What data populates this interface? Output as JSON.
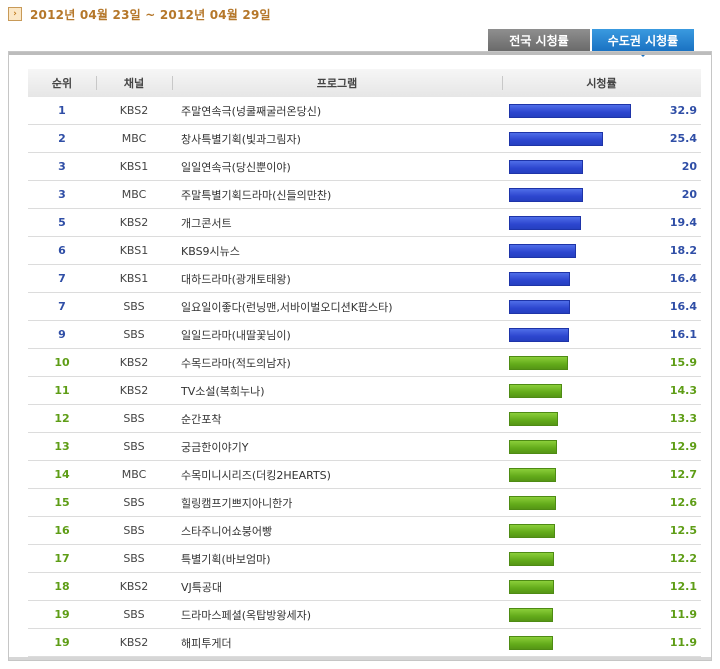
{
  "header": {
    "icon": "arrow-right-icon",
    "date_range": "2012년 04월 23일 ~ 2012년 04월 29일"
  },
  "tabs": [
    {
      "label": "전국 시청률",
      "selected": false
    },
    {
      "label": "수도권 시청률",
      "selected": true
    }
  ],
  "columns": [
    "순위",
    "채널",
    "프로그램",
    "시청률"
  ],
  "rows": [
    {
      "rank": "1",
      "channel": "KBS2",
      "program": "주말연속극(넝쿨째굴러온당신)",
      "rating": "32.9",
      "color": "blue"
    },
    {
      "rank": "2",
      "channel": "MBC",
      "program": "창사특별기획(빛과그림자)",
      "rating": "25.4",
      "color": "blue"
    },
    {
      "rank": "3",
      "channel": "KBS1",
      "program": "일일연속극(당신뿐이야)",
      "rating": "20",
      "color": "blue"
    },
    {
      "rank": "3",
      "channel": "MBC",
      "program": "주말특별기획드라마(신들의만찬)",
      "rating": "20",
      "color": "blue"
    },
    {
      "rank": "5",
      "channel": "KBS2",
      "program": "개그콘서트",
      "rating": "19.4",
      "color": "blue"
    },
    {
      "rank": "6",
      "channel": "KBS1",
      "program": "KBS9시뉴스",
      "rating": "18.2",
      "color": "blue"
    },
    {
      "rank": "7",
      "channel": "KBS1",
      "program": "대하드라마(광개토태왕)",
      "rating": "16.4",
      "color": "blue"
    },
    {
      "rank": "7",
      "channel": "SBS",
      "program": "일요일이좋다(런닝맨,서바이벌오디션K팝스타)",
      "rating": "16.4",
      "color": "blue"
    },
    {
      "rank": "9",
      "channel": "SBS",
      "program": "일일드라마(내딸꽃님이)",
      "rating": "16.1",
      "color": "blue"
    },
    {
      "rank": "10",
      "channel": "KBS2",
      "program": "수목드라마(적도의남자)",
      "rating": "15.9",
      "color": "green"
    },
    {
      "rank": "11",
      "channel": "KBS2",
      "program": "TV소설(복희누나)",
      "rating": "14.3",
      "color": "green"
    },
    {
      "rank": "12",
      "channel": "SBS",
      "program": "순간포착",
      "rating": "13.3",
      "color": "green"
    },
    {
      "rank": "13",
      "channel": "SBS",
      "program": "궁금한이야기Y",
      "rating": "12.9",
      "color": "green"
    },
    {
      "rank": "14",
      "channel": "MBC",
      "program": "수목미니시리즈(더킹2HEARTS)",
      "rating": "12.7",
      "color": "green"
    },
    {
      "rank": "15",
      "channel": "SBS",
      "program": "힐링캠프기쁘지아니한가",
      "rating": "12.6",
      "color": "green"
    },
    {
      "rank": "16",
      "channel": "SBS",
      "program": "스타주니어쇼붕어빵",
      "rating": "12.5",
      "color": "green"
    },
    {
      "rank": "17",
      "channel": "SBS",
      "program": "특별기획(바보엄마)",
      "rating": "12.2",
      "color": "green"
    },
    {
      "rank": "18",
      "channel": "KBS2",
      "program": "VJ특공대",
      "rating": "12.1",
      "color": "green"
    },
    {
      "rank": "19",
      "channel": "SBS",
      "program": "드라마스페셜(옥탑방왕세자)",
      "rating": "11.9",
      "color": "green"
    },
    {
      "rank": "19",
      "channel": "KBS2",
      "program": "해피투게더",
      "rating": "11.9",
      "color": "green"
    }
  ],
  "colors": {
    "bar_blue": "#2d46cf",
    "bar_green": "#63ab1a",
    "date": "#b5772a",
    "tab_active": "#1a72c2"
  }
}
